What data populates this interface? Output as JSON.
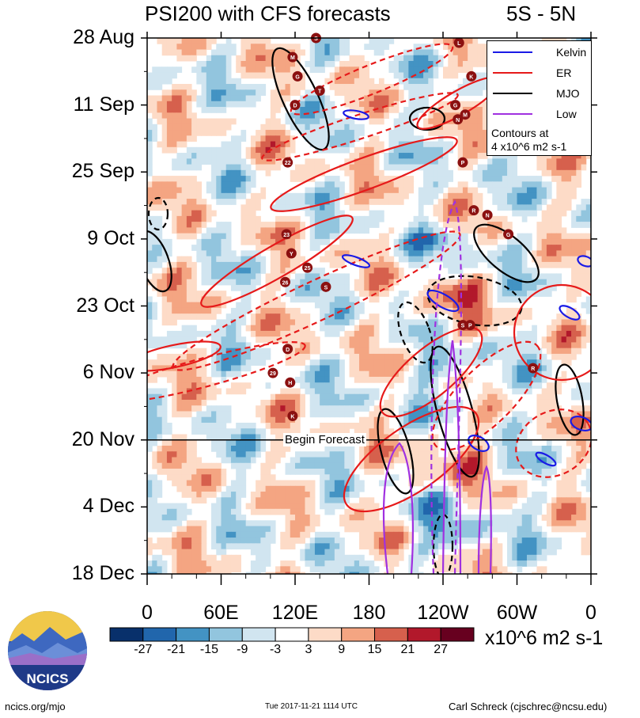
{
  "chart_data": {
    "type": "heatmap",
    "title_left": "PSI200 with CFS forecasts",
    "title_right": "5S - 5N",
    "y_labels": [
      "28 Aug",
      "11 Sep",
      "25 Sep",
      "9 Oct",
      "23 Oct",
      "6 Nov",
      "20 Nov",
      "4 Dec",
      "18 Dec"
    ],
    "x_labels": [
      "0",
      "60E",
      "120E",
      "180",
      "120W",
      "60W",
      "0"
    ],
    "forecast_label": "Begin Forecast",
    "forecast_start": "20 Nov",
    "legend": [
      {
        "label": "Kelvin",
        "color": "#1a1ae6",
        "dash": false
      },
      {
        "label": "ER",
        "color": "#e61a1a",
        "dash": false
      },
      {
        "label": "MJO",
        "color": "#000000",
        "dash": false
      },
      {
        "label": "Low",
        "color": "#a030e0",
        "dash": false
      }
    ],
    "contour_note_line1": "Contours at",
    "contour_note_line2": "4 x10^6 m2 s-1",
    "colorbar": {
      "levels": [
        "-27",
        "-21",
        "-15",
        "-9",
        "-3",
        "3",
        "9",
        "15",
        "21",
        "27"
      ],
      "colors": [
        "#08306b",
        "#2166ac",
        "#4393c3",
        "#92c5de",
        "#d1e5f0",
        "#ffffff",
        "#fddbc7",
        "#f4a582",
        "#d6604d",
        "#b2182b",
        "#67001f"
      ],
      "units": "x10^6 m2 s-1"
    },
    "storms": [
      {
        "sym": "S",
        "lon": 137,
        "day": 0
      },
      {
        "sym": "M",
        "lon": 118,
        "day": 4
      },
      {
        "sym": "G",
        "lon": 122,
        "day": 8
      },
      {
        "sym": "D",
        "lon": 120,
        "day": 14
      },
      {
        "sym": "T",
        "lon": 140,
        "day": 11
      },
      {
        "sym": "22",
        "lon": 114,
        "day": 26
      },
      {
        "sym": "L",
        "lon": 253,
        "day": 1
      },
      {
        "sym": "K",
        "lon": 263,
        "day": 8
      },
      {
        "sym": "G",
        "lon": 250,
        "day": 14
      },
      {
        "sym": "N",
        "lon": 252,
        "day": 17
      },
      {
        "sym": "M",
        "lon": 258,
        "day": 16
      },
      {
        "sym": "P",
        "lon": 256,
        "day": 26
      },
      {
        "sym": "R",
        "lon": 265,
        "day": 36
      },
      {
        "sym": "N",
        "lon": 276,
        "day": 37
      },
      {
        "sym": "G",
        "lon": 293,
        "day": 41
      },
      {
        "sym": "23",
        "lon": 113,
        "day": 41
      },
      {
        "sym": "Y",
        "lon": 117,
        "day": 45
      },
      {
        "sym": "25",
        "lon": 130,
        "day": 48
      },
      {
        "sym": "26",
        "lon": 112,
        "day": 51
      },
      {
        "sym": "S",
        "lon": 145,
        "day": 52
      },
      {
        "sym": "S",
        "lon": 256,
        "day": 60
      },
      {
        "sym": "P",
        "lon": 262,
        "day": 60
      },
      {
        "sym": "D",
        "lon": 114,
        "day": 65
      },
      {
        "sym": "29",
        "lon": 102,
        "day": 70
      },
      {
        "sym": "H",
        "lon": 116,
        "day": 72
      },
      {
        "sym": "R",
        "lon": 313,
        "day": 69
      },
      {
        "sym": "K",
        "lon": 118,
        "day": 79
      }
    ]
  },
  "footer": {
    "logo_text": "NCICS",
    "url": "ncics.org/mjo",
    "timestamp": "Tue 2017-11-21 1114 UTC",
    "author": "Carl Schreck (cjschrec@ncsu.edu)"
  }
}
